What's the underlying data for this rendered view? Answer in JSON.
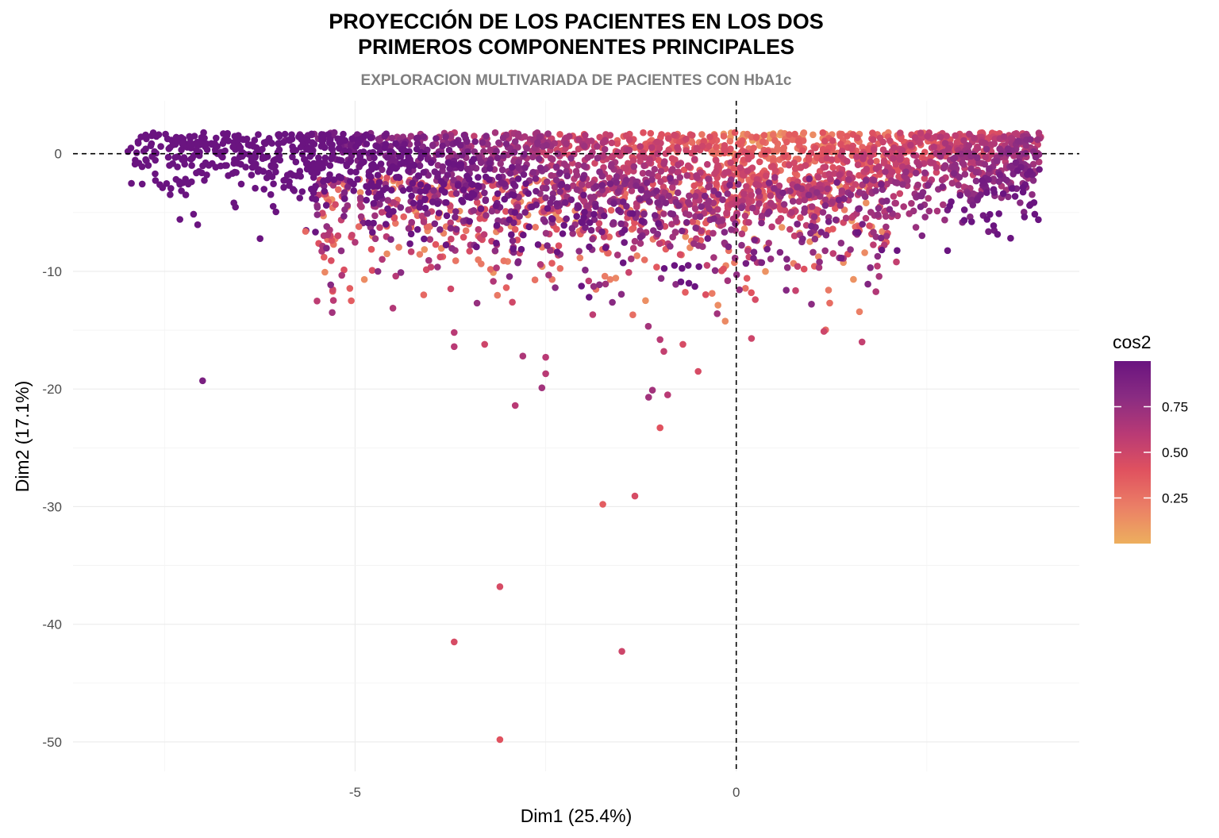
{
  "chart_data": {
    "type": "scatter",
    "title": "PROYECCIÓN DE LOS PACIENTES EN LOS DOS\nPRIMEROS COMPONENTES PRINCIPALES",
    "title_lines": [
      "PROYECCIÓN DE LOS PACIENTES EN LOS DOS",
      "PRIMEROS COMPONENTES PRINCIPALES"
    ],
    "subtitle": "EXPLORACION MULTIVARIADA DE PACIENTES CON HbA1c",
    "xlabel": "Dim1 (25.4%)",
    "ylabel": "Dim2 (17.1%)",
    "xlim": [
      -8.7,
      4.5
    ],
    "ylim": [
      -52.5,
      4.5
    ],
    "x_ticks": [
      -5,
      0
    ],
    "x_tick_labels": [
      "-5",
      "0"
    ],
    "y_ticks": [
      0,
      -10,
      -20,
      -30,
      -40,
      -50
    ],
    "y_tick_labels": [
      "0",
      "-10",
      "-20",
      "-30",
      "-40",
      "-50"
    ],
    "reference_lines": {
      "x": 0,
      "y": 0,
      "style": "dashed"
    },
    "grid": true,
    "legend": {
      "title": "cos2",
      "position": "right",
      "type": "continuous",
      "range": [
        0,
        1
      ],
      "breaks": [
        0.25,
        0.5,
        0.75
      ],
      "break_labels": [
        "0.25",
        "0.50",
        "0.75"
      ],
      "colors": [
        "#EDAF5E",
        "#EB7F66",
        "#E0525F",
        "#B93A75",
        "#8A2C82",
        "#6A1480"
      ]
    },
    "dense_cloud": {
      "description_free": true,
      "x_range": [
        -8.0,
        4.0
      ],
      "y_top": 2.0
    },
    "outliers": [
      {
        "x": -7.0,
        "y": -19.3,
        "cos2": 0.9
      },
      {
        "x": -3.1,
        "y": -49.8,
        "cos2": 0.4
      },
      {
        "x": -3.7,
        "y": -41.5,
        "cos2": 0.45
      },
      {
        "x": -1.5,
        "y": -42.3,
        "cos2": 0.5
      },
      {
        "x": -3.1,
        "y": -36.8,
        "cos2": 0.45
      },
      {
        "x": -1.75,
        "y": -29.8,
        "cos2": 0.35
      },
      {
        "x": -1.33,
        "y": -29.1,
        "cos2": 0.45
      },
      {
        "x": -1.0,
        "y": -23.3,
        "cos2": 0.4
      },
      {
        "x": -0.9,
        "y": -20.5,
        "cos2": 0.6
      },
      {
        "x": -1.1,
        "y": -20.1,
        "cos2": 0.7
      },
      {
        "x": -1.15,
        "y": -20.7,
        "cos2": 0.7
      },
      {
        "x": -2.9,
        "y": -21.4,
        "cos2": 0.6
      },
      {
        "x": -2.55,
        "y": -19.9,
        "cos2": 0.7
      },
      {
        "x": -2.5,
        "y": -18.7,
        "cos2": 0.6
      },
      {
        "x": -2.5,
        "y": -17.3,
        "cos2": 0.6
      },
      {
        "x": -2.8,
        "y": -17.2,
        "cos2": 0.65
      },
      {
        "x": -3.7,
        "y": -16.4,
        "cos2": 0.6
      },
      {
        "x": -3.7,
        "y": -15.2,
        "cos2": 0.6
      },
      {
        "x": -3.3,
        "y": -16.2,
        "cos2": 0.5
      },
      {
        "x": -0.7,
        "y": -16.2,
        "cos2": 0.45
      },
      {
        "x": -1.0,
        "y": -15.8,
        "cos2": 0.6
      },
      {
        "x": -0.95,
        "y": -16.8,
        "cos2": 0.55
      },
      {
        "x": -0.5,
        "y": -18.5,
        "cos2": 0.45
      },
      {
        "x": 0.2,
        "y": -15.7,
        "cos2": 0.5
      },
      {
        "x": 1.15,
        "y": -15.1,
        "cos2": 0.5
      },
      {
        "x": 1.65,
        "y": -16.0,
        "cos2": 0.55
      },
      {
        "x": -5.3,
        "y": -13.5,
        "cos2": 0.7
      },
      {
        "x": -5.05,
        "y": -12.5,
        "cos2": 0.35
      },
      {
        "x": -4.1,
        "y": -12.0,
        "cos2": 0.3
      },
      {
        "x": -3.4,
        "y": -12.7,
        "cos2": 0.75
      },
      {
        "x": -4.95,
        "y": -6.2,
        "cos2": 0.3
      },
      {
        "x": -5.65,
        "y": -6.6,
        "cos2": 0.3
      },
      {
        "x": -0.25,
        "y": -13.6,
        "cos2": 0.7
      },
      {
        "x": 0.25,
        "y": -12.4,
        "cos2": 0.45
      },
      {
        "x": -4.7,
        "y": -10.0,
        "cos2": 0.8
      },
      {
        "x": -4.4,
        "y": -10.1,
        "cos2": 0.8
      },
      {
        "x": 2.1,
        "y": -9.2,
        "cos2": 0.55
      }
    ]
  }
}
